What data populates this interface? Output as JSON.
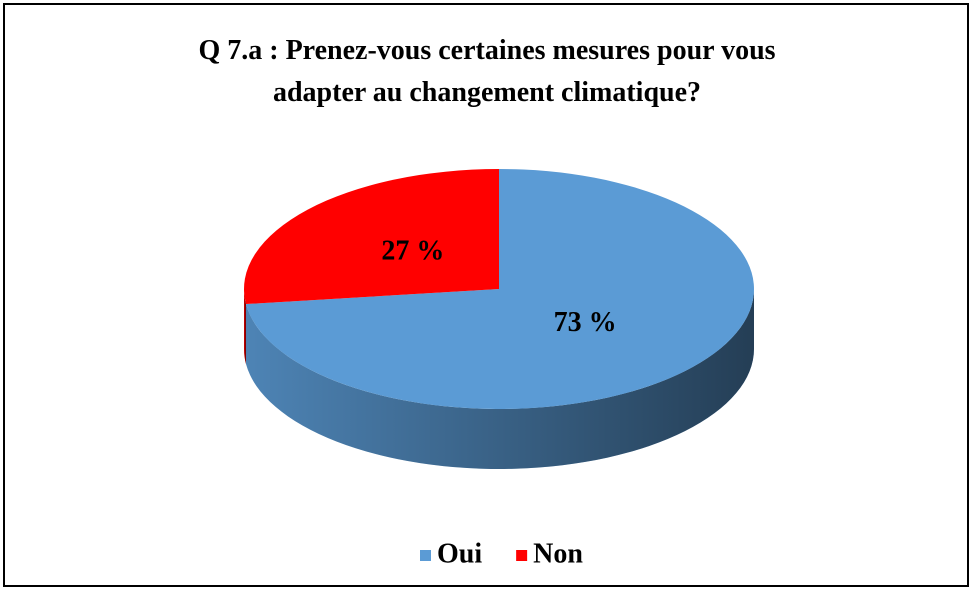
{
  "chart_data": {
    "type": "pie",
    "title": "Q 7.a : Prenez-vous certaines mesures pour vous adapter au changement climatique?",
    "categories": [
      "Oui",
      "Non"
    ],
    "values": [
      73,
      27
    ],
    "value_labels": [
      "73 %",
      "27 %"
    ],
    "colors": [
      "#5b9bd5",
      "#ff0000"
    ],
    "legend": "bottom"
  }
}
